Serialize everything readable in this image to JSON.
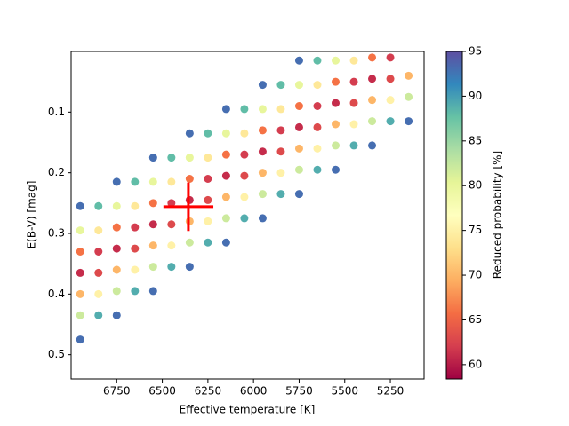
{
  "chart_data": {
    "type": "scatter",
    "xlabel": "Effective temperature [K]",
    "ylabel": "E(B-V) [mag]",
    "xlim": [
      7000,
      5065
    ],
    "ylim": [
      0.54,
      0
    ],
    "xticks": [
      6750,
      6500,
      6250,
      6000,
      5750,
      5500,
      5250
    ],
    "yticks": [
      0.1,
      0.2,
      0.3,
      0.4,
      0.5
    ],
    "colorbar": {
      "label": "Reduced probability [%]",
      "colormap": "Spectral",
      "clim": [
        58.4,
        95
      ],
      "ticks": [
        60,
        65,
        70,
        75,
        80,
        85,
        90,
        95
      ]
    },
    "points": {
      "x": [
        6950,
        6950,
        6950,
        6950,
        6950,
        6950,
        6950,
        6850,
        6850,
        6850,
        6850,
        6850,
        6850,
        6750,
        6750,
        6750,
        6750,
        6750,
        6750,
        6750,
        6650,
        6650,
        6650,
        6650,
        6650,
        6650,
        6550,
        6550,
        6550,
        6550,
        6550,
        6550,
        6550,
        6450,
        6450,
        6450,
        6450,
        6450,
        6450,
        6350,
        6350,
        6350,
        6350,
        6350,
        6350,
        6350,
        6250,
        6250,
        6250,
        6250,
        6250,
        6250,
        6150,
        6150,
        6150,
        6150,
        6150,
        6150,
        6150,
        6050,
        6050,
        6050,
        6050,
        6050,
        6050,
        5950,
        5950,
        5950,
        5950,
        5950,
        5950,
        5950,
        5850,
        5850,
        5850,
        5850,
        5850,
        5850,
        5750,
        5750,
        5750,
        5750,
        5750,
        5750,
        5750,
        5650,
        5650,
        5650,
        5650,
        5650,
        5650,
        5550,
        5550,
        5550,
        5550,
        5550,
        5550,
        5450,
        5450,
        5450,
        5450,
        5450,
        5350,
        5350,
        5350,
        5350,
        5350,
        5250,
        5250,
        5250,
        5250,
        5150,
        5150,
        5150
      ],
      "y": [
        0.255,
        0.295,
        0.33,
        0.365,
        0.4,
        0.435,
        0.475,
        0.255,
        0.295,
        0.33,
        0.365,
        0.4,
        0.435,
        0.215,
        0.255,
        0.29,
        0.325,
        0.36,
        0.395,
        0.435,
        0.215,
        0.255,
        0.29,
        0.325,
        0.36,
        0.395,
        0.175,
        0.215,
        0.25,
        0.285,
        0.32,
        0.355,
        0.395,
        0.175,
        0.215,
        0.25,
        0.285,
        0.32,
        0.355,
        0.135,
        0.175,
        0.21,
        0.245,
        0.28,
        0.315,
        0.355,
        0.135,
        0.175,
        0.21,
        0.245,
        0.28,
        0.315,
        0.095,
        0.135,
        0.17,
        0.205,
        0.24,
        0.275,
        0.315,
        0.095,
        0.135,
        0.17,
        0.205,
        0.24,
        0.275,
        0.055,
        0.095,
        0.13,
        0.165,
        0.2,
        0.235,
        0.275,
        0.055,
        0.095,
        0.13,
        0.165,
        0.2,
        0.235,
        0.015,
        0.055,
        0.09,
        0.125,
        0.16,
        0.195,
        0.235,
        0.015,
        0.055,
        0.09,
        0.125,
        0.16,
        0.195,
        0.015,
        0.05,
        0.085,
        0.12,
        0.155,
        0.195,
        0.015,
        0.05,
        0.085,
        0.12,
        0.155,
        0.01,
        0.045,
        0.08,
        0.115,
        0.155,
        0.01,
        0.045,
        0.08,
        0.115,
        0.04,
        0.075,
        0.115
      ],
      "c": [
        93,
        80,
        66,
        61,
        70,
        82,
        93,
        88,
        74,
        62,
        63,
        75,
        89,
        93,
        80,
        66,
        61,
        70,
        82,
        93,
        88,
        74,
        62,
        63,
        75,
        89,
        93,
        80,
        66,
        61,
        70,
        82,
        93,
        88,
        74,
        62,
        63,
        75,
        89,
        93,
        80,
        66,
        61,
        70,
        82,
        93,
        88,
        74,
        62,
        63,
        75,
        89,
        93,
        80,
        66,
        61,
        70,
        82,
        93,
        88,
        74,
        62,
        63,
        75,
        89,
        93,
        80,
        66,
        61,
        70,
        82,
        93,
        88,
        74,
        62,
        63,
        75,
        89,
        93,
        80,
        66,
        61,
        70,
        82,
        93,
        88,
        74,
        62,
        63,
        75,
        89,
        80,
        66,
        61,
        70,
        82,
        93,
        74,
        62,
        63,
        75,
        89,
        66,
        61,
        70,
        82,
        93,
        62,
        63,
        75,
        89,
        70,
        82,
        93
      ]
    },
    "marker": {
      "x": 6357,
      "y": 0.256,
      "xerr": 137,
      "yerr": 0.04,
      "color": "#ff0000"
    }
  }
}
